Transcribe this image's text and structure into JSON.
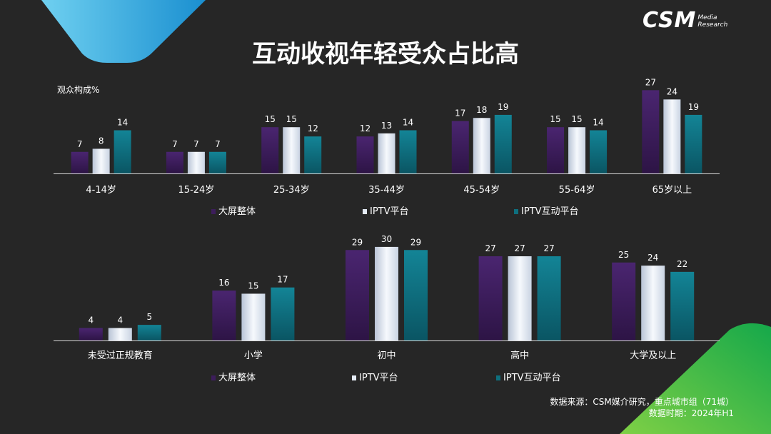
{
  "slide": {
    "title": "互动收视年轻受众占比高",
    "logo_main": "CSM",
    "logo_sub": "Media Research",
    "ylabel": "观众构成%",
    "source_line1": "数据来源：CSM媒介研究，重点城市组（71城）",
    "source_line2": "数据时期：2024年H1"
  },
  "colors": {
    "background": "#262626",
    "series_1": "#3d1d5c",
    "series_2": "#e4ebf5",
    "series_3": "#0e6f7e"
  },
  "chart_data": [
    {
      "type": "bar",
      "title": "",
      "ylabel": "观众构成%",
      "categories": [
        "4-14岁",
        "15-24岁",
        "25-34岁",
        "35-44岁",
        "45-54岁",
        "55-64岁",
        "65岁以上"
      ],
      "series": [
        {
          "name": "大屏整体",
          "values": [
            7,
            7,
            15,
            12,
            17,
            15,
            27
          ]
        },
        {
          "name": "IPTV平台",
          "values": [
            8,
            7,
            15,
            13,
            18,
            15,
            24
          ]
        },
        {
          "name": "IPTV互动平台",
          "values": [
            14,
            7,
            12,
            14,
            19,
            14,
            19
          ]
        }
      ],
      "ylim": [
        0,
        28
      ],
      "grid": false,
      "legend": "bottom",
      "data_labels": true
    },
    {
      "type": "bar",
      "title": "",
      "categories": [
        "未受过正规教育",
        "小学",
        "初中",
        "高中",
        "大学及以上"
      ],
      "series": [
        {
          "name": "大屏整体",
          "values": [
            4,
            16,
            29,
            27,
            25
          ]
        },
        {
          "name": "IPTV平台",
          "values": [
            4,
            15,
            30,
            27,
            24
          ]
        },
        {
          "name": "IPTV互动平台",
          "values": [
            5,
            17,
            29,
            27,
            22
          ]
        }
      ],
      "ylim": [
        0,
        31
      ],
      "grid": false,
      "legend": "bottom",
      "data_labels": true
    }
  ]
}
